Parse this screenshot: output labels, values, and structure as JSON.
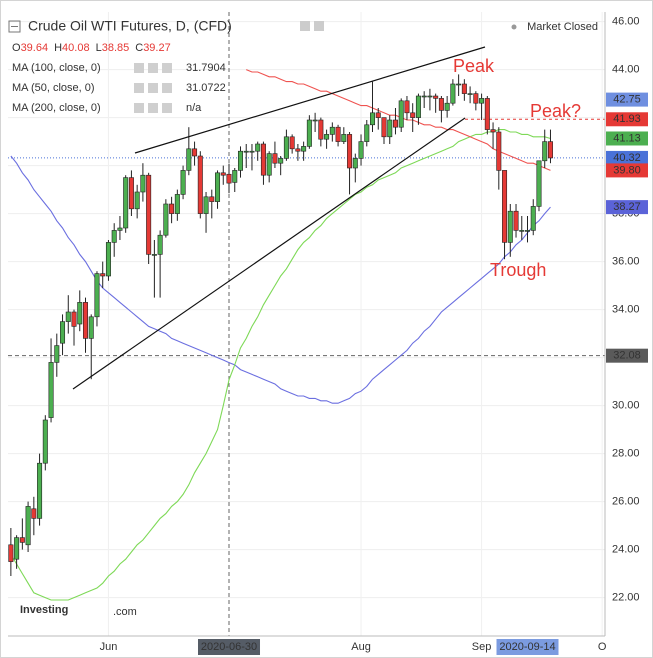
{
  "header": {
    "title": "Crude Oil WTI Futures, D, (CFD)",
    "status": "Market Closed",
    "ohlc": [
      {
        "label": "O",
        "value": 39.64
      },
      {
        "label": "H",
        "value": 40.08
      },
      {
        "label": "L",
        "value": 38.85
      },
      {
        "label": "C",
        "value": 39.27
      }
    ],
    "watermark": [
      "Investing",
      ".com"
    ]
  },
  "chart_data": {
    "type": "candlestick",
    "categories": [
      null,
      null,
      null,
      null,
      null,
      null,
      null,
      null,
      null,
      null,
      null,
      null,
      null,
      null,
      null,
      null,
      null,
      "Jun",
      null,
      null,
      null,
      null,
      null,
      null,
      null,
      null,
      null,
      null,
      null,
      null,
      null,
      null,
      null,
      null,
      null,
      null,
      null,
      null,
      "2020-06-30",
      null,
      null,
      null,
      null,
      null,
      null,
      null,
      null,
      null,
      null,
      null,
      null,
      null,
      null,
      null,
      null,
      null,
      null,
      null,
      null,
      null,
      null,
      "Aug",
      null,
      null,
      null,
      null,
      null,
      null,
      null,
      null,
      null,
      null,
      null,
      null,
      null,
      null,
      null,
      null,
      null,
      null,
      null,
      null,
      "Sep",
      null,
      null,
      null,
      null,
      null,
      null,
      null,
      "2020-09-14",
      null,
      null,
      null,
      null,
      null,
      null,
      null,
      null,
      null,
      null,
      null,
      null,
      "O"
    ],
    "series": [
      {
        "type": "candlestick",
        "up_color": "#4caf50",
        "down_color": "#e53935",
        "open": [
          24.2,
          23.6,
          24.5,
          24.2,
          25.7,
          25.3,
          27.6,
          29.5,
          31.8,
          32.6,
          33.5,
          33.9,
          33.4,
          34.3,
          32.8,
          33.7,
          35.5,
          35.4,
          36.8,
          37.3,
          37.4,
          39.5,
          38.2,
          38.9,
          39.6,
          36.3,
          36.3,
          37.1,
          38.4,
          38.0,
          38.8,
          39.8,
          40.7,
          40.4,
          38.0,
          38.7,
          38.5,
          39.7,
          39.64,
          39.3,
          39.8,
          40.6,
          40.6,
          40.6,
          40.9,
          39.6,
          40.5,
          40.1,
          40.3,
          41.2,
          40.7,
          40.6,
          40.8,
          41.9,
          41.9,
          41.1,
          41.3,
          41.6,
          41.0,
          41.3,
          39.9,
          40.3,
          41.0,
          41.7,
          42.2,
          42.0,
          41.2,
          41.9,
          41.6,
          42.7,
          42.2,
          42.0,
          42.9,
          42.9,
          42.9,
          42.8,
          42.3,
          42.6,
          43.4,
          43.4,
          43.0,
          43.0,
          42.6,
          42.8,
          41.5,
          41.4,
          39.8,
          36.8,
          38.1,
          37.3,
          37.3,
          37.3,
          38.3,
          40.2,
          41.0,
          null,
          null,
          null,
          null,
          null,
          null,
          null,
          null,
          null
        ],
        "high": [
          24.9,
          24.6,
          25.3,
          26.0,
          26.2,
          28.0,
          29.6,
          32.8,
          33.0,
          33.8,
          34.6,
          34.0,
          34.8,
          34.5,
          33.8,
          35.6,
          36.0,
          36.9,
          37.6,
          37.9,
          39.6,
          39.8,
          39.2,
          40.1,
          39.7,
          36.9,
          37.3,
          38.6,
          38.7,
          39.0,
          40.0,
          41.6,
          41.0,
          40.6,
          38.9,
          39.0,
          39.8,
          40.0,
          40.08,
          39.9,
          40.8,
          40.9,
          40.9,
          41.0,
          41.0,
          40.6,
          41.0,
          40.4,
          41.5,
          41.3,
          40.9,
          41.0,
          42.1,
          42.2,
          42.0,
          41.5,
          41.8,
          41.7,
          41.6,
          41.4,
          40.5,
          41.3,
          41.9,
          43.5,
          42.4,
          42.0,
          42.1,
          42.4,
          42.8,
          42.9,
          42.6,
          43.0,
          43.1,
          43.2,
          43.0,
          42.9,
          42.9,
          43.6,
          43.8,
          43.6,
          43.3,
          43.1,
          43.0,
          42.9,
          41.8,
          41.6,
          39.8,
          38.4,
          38.4,
          37.9,
          37.9,
          38.6,
          40.2,
          41.5,
          41.5,
          null,
          null,
          null,
          null,
          null,
          null,
          null,
          null,
          null
        ],
        "low": [
          22.9,
          23.2,
          24.0,
          23.9,
          24.6,
          25.0,
          27.3,
          29.3,
          31.2,
          32.1,
          33.0,
          32.5,
          33.1,
          32.2,
          31.1,
          33.3,
          34.9,
          35.2,
          36.2,
          36.9,
          37.2,
          37.9,
          37.8,
          38.5,
          35.9,
          34.5,
          34.5,
          37.0,
          37.6,
          37.7,
          38.6,
          39.6,
          40.0,
          37.8,
          37.2,
          37.8,
          38.2,
          39.2,
          38.85,
          38.9,
          39.5,
          39.9,
          39.8,
          40.2,
          39.2,
          39.3,
          39.9,
          39.6,
          40.2,
          40.5,
          40.2,
          40.2,
          40.7,
          41.4,
          40.8,
          40.7,
          41.0,
          40.8,
          40.9,
          38.8,
          39.3,
          40.0,
          40.8,
          41.4,
          41.5,
          40.9,
          40.9,
          41.3,
          41.4,
          41.9,
          41.4,
          41.7,
          42.4,
          42.3,
          42.2,
          41.8,
          42.0,
          42.5,
          42.9,
          42.7,
          42.6,
          42.3,
          41.9,
          41.3,
          40.7,
          39.0,
          36.1,
          36.2,
          37.0,
          36.9,
          36.8,
          37.1,
          38.1,
          39.9,
          40.1,
          null,
          null,
          null,
          null,
          null,
          null,
          null,
          null,
          null
        ],
        "close": [
          23.5,
          24.5,
          24.3,
          25.8,
          25.3,
          27.6,
          29.4,
          31.8,
          32.5,
          33.5,
          33.9,
          33.3,
          34.3,
          32.8,
          33.7,
          35.5,
          35.4,
          36.8,
          37.3,
          37.4,
          39.5,
          38.2,
          38.9,
          39.6,
          36.3,
          36.3,
          37.1,
          38.4,
          38.0,
          38.8,
          39.8,
          40.7,
          40.4,
          38.0,
          38.7,
          38.5,
          39.7,
          39.6,
          39.27,
          39.8,
          40.6,
          40.6,
          40.6,
          40.9,
          39.6,
          40.5,
          40.1,
          40.3,
          41.2,
          40.7,
          40.6,
          40.8,
          41.9,
          41.9,
          41.1,
          41.3,
          41.6,
          41.0,
          41.3,
          39.9,
          40.3,
          41.0,
          41.7,
          42.2,
          42.0,
          41.2,
          41.9,
          41.6,
          42.7,
          42.2,
          42.0,
          42.9,
          42.9,
          42.9,
          42.8,
          42.3,
          42.6,
          43.4,
          43.4,
          43.0,
          43.0,
          42.6,
          42.8,
          41.5,
          41.4,
          39.8,
          36.8,
          38.1,
          37.3,
          37.3,
          37.3,
          38.3,
          40.2,
          41.0,
          40.32,
          null,
          null,
          null,
          null,
          null,
          null,
          null,
          null,
          null
        ]
      },
      {
        "type": "line",
        "name": "MA (100, close, 0)",
        "legend_value": 31.7904,
        "color": "#6b6fe0",
        "values": [
          40.4,
          40.1,
          39.7,
          39.4,
          39.0,
          38.7,
          38.4,
          38.1,
          37.7,
          37.4,
          37.0,
          36.7,
          36.3,
          36.0,
          35.6,
          35.2,
          34.9,
          34.7,
          34.5,
          34.3,
          34.1,
          33.9,
          33.7,
          33.5,
          33.3,
          33.2,
          33.1,
          33.0,
          32.8,
          32.7,
          32.6,
          32.5,
          32.4,
          32.3,
          32.2,
          32.1,
          32.0,
          31.9,
          31.79,
          31.7,
          31.5,
          31.4,
          31.3,
          31.2,
          31.1,
          31.0,
          30.9,
          30.7,
          30.6,
          30.5,
          30.4,
          30.4,
          30.3,
          30.3,
          30.2,
          30.2,
          30.1,
          30.1,
          30.2,
          30.3,
          30.5,
          30.6,
          30.8,
          31.1,
          31.3,
          31.5,
          31.7,
          31.9,
          32.1,
          32.3,
          32.6,
          32.8,
          33.1,
          33.3,
          33.6,
          33.9,
          34.1,
          34.3,
          34.5,
          34.7,
          34.9,
          35.1,
          35.3,
          35.5,
          35.7,
          35.9,
          36.2,
          36.4,
          36.7,
          36.9,
          37.2,
          37.5,
          37.7,
          38.0,
          38.27,
          null,
          null,
          null,
          null,
          null,
          null,
          null,
          null,
          null
        ]
      },
      {
        "type": "line",
        "name": "MA (50, close, 0)",
        "legend_value": 31.0722,
        "color": "#7ed957",
        "values": [
          23.8,
          23.4,
          23.0,
          22.6,
          22.2,
          22.1,
          22.0,
          21.9,
          21.9,
          21.9,
          21.9,
          22.0,
          22.1,
          22.2,
          22.3,
          22.4,
          22.6,
          22.9,
          23.1,
          23.4,
          23.6,
          23.9,
          24.2,
          24.4,
          24.7,
          25.0,
          25.3,
          25.5,
          25.8,
          26.0,
          26.3,
          26.7,
          27.2,
          27.6,
          28.0,
          28.5,
          29.0,
          30.0,
          31.07,
          31.7,
          32.4,
          32.8,
          33.3,
          33.7,
          34.2,
          34.6,
          35.0,
          35.4,
          35.7,
          36.1,
          36.5,
          36.8,
          37.0,
          37.3,
          37.5,
          37.8,
          38.0,
          38.2,
          38.4,
          38.6,
          38.8,
          38.9,
          39.1,
          39.2,
          39.4,
          39.5,
          39.6,
          39.7,
          39.9,
          40.0,
          40.1,
          40.2,
          40.3,
          40.4,
          40.5,
          40.6,
          40.7,
          40.8,
          41.0,
          41.1,
          41.2,
          41.3,
          41.3,
          41.4,
          41.4,
          41.5,
          41.5,
          41.4,
          41.4,
          41.3,
          41.3,
          41.2,
          41.2,
          41.2,
          41.13,
          null,
          null,
          null,
          null,
          null,
          null,
          null,
          null,
          null
        ]
      },
      {
        "type": "line",
        "name": "MA (200, close, 0)",
        "legend_value": "n/a",
        "color": "#ef5350",
        "values": [
          null,
          null,
          null,
          null,
          null,
          null,
          null,
          null,
          null,
          null,
          null,
          null,
          null,
          null,
          null,
          null,
          null,
          null,
          null,
          null,
          null,
          null,
          null,
          null,
          null,
          null,
          null,
          null,
          null,
          null,
          null,
          null,
          null,
          null,
          null,
          null,
          null,
          null,
          null,
          null,
          null,
          44.0,
          43.9,
          43.9,
          43.8,
          43.7,
          43.7,
          43.6,
          43.5,
          43.5,
          43.4,
          43.4,
          43.3,
          43.2,
          43.1,
          43.1,
          43.0,
          42.9,
          42.8,
          42.7,
          42.6,
          42.5,
          42.5,
          42.4,
          42.3,
          42.2,
          42.1,
          42.1,
          42.0,
          41.9,
          41.9,
          41.8,
          41.7,
          41.7,
          41.6,
          41.6,
          41.5,
          41.5,
          41.4,
          41.3,
          41.2,
          41.1,
          41.0,
          40.9,
          40.7,
          40.6,
          40.5,
          40.4,
          40.3,
          40.2,
          40.1,
          40.1,
          40.0,
          39.9,
          39.8,
          null,
          null,
          null,
          null,
          null,
          null,
          null,
          null,
          null
        ]
      }
    ],
    "ylim": [
      20.4,
      46.4
    ],
    "yticks": [
      {
        "value": 22,
        "label": "22.00"
      },
      {
        "value": 24,
        "label": "24.00"
      },
      {
        "value": 26,
        "label": "26.00"
      },
      {
        "value": 28,
        "label": "28.00"
      },
      {
        "value": 30,
        "label": "30.00"
      },
      {
        "value": 32,
        "label": "32.00"
      },
      {
        "value": 34,
        "label": "34.00"
      },
      {
        "value": 36,
        "label": "36.00"
      },
      {
        "value": 38,
        "label": "38.00"
      },
      {
        "value": 40,
        "label": "40.00"
      },
      {
        "value": 42,
        "label": "42.00"
      },
      {
        "value": 44,
        "label": "44.00"
      },
      {
        "value": 46,
        "label": "46.00"
      }
    ],
    "grid": true,
    "price_tags": [
      {
        "value": 42.75,
        "label": "42.75",
        "color": "#6f8fe0"
      },
      {
        "value": 41.93,
        "label": "41.93",
        "color": "#e53935",
        "line": "ray"
      },
      {
        "value": 41.13,
        "label": "41.13",
        "color": "#4caf50"
      },
      {
        "value": 40.32,
        "label": "40.32",
        "color": "#4a72d8",
        "line": "dotted"
      },
      {
        "value": 39.8,
        "label": "39.80",
        "color": "#e53935"
      },
      {
        "value": 38.27,
        "label": "38.27",
        "color": "#5b63d8"
      },
      {
        "value": 32.08,
        "label": "32.08",
        "color": "#5a5a5a",
        "line": "dashed"
      }
    ],
    "annotations": [
      "Peak",
      "Peak?",
      "Trough"
    ]
  }
}
